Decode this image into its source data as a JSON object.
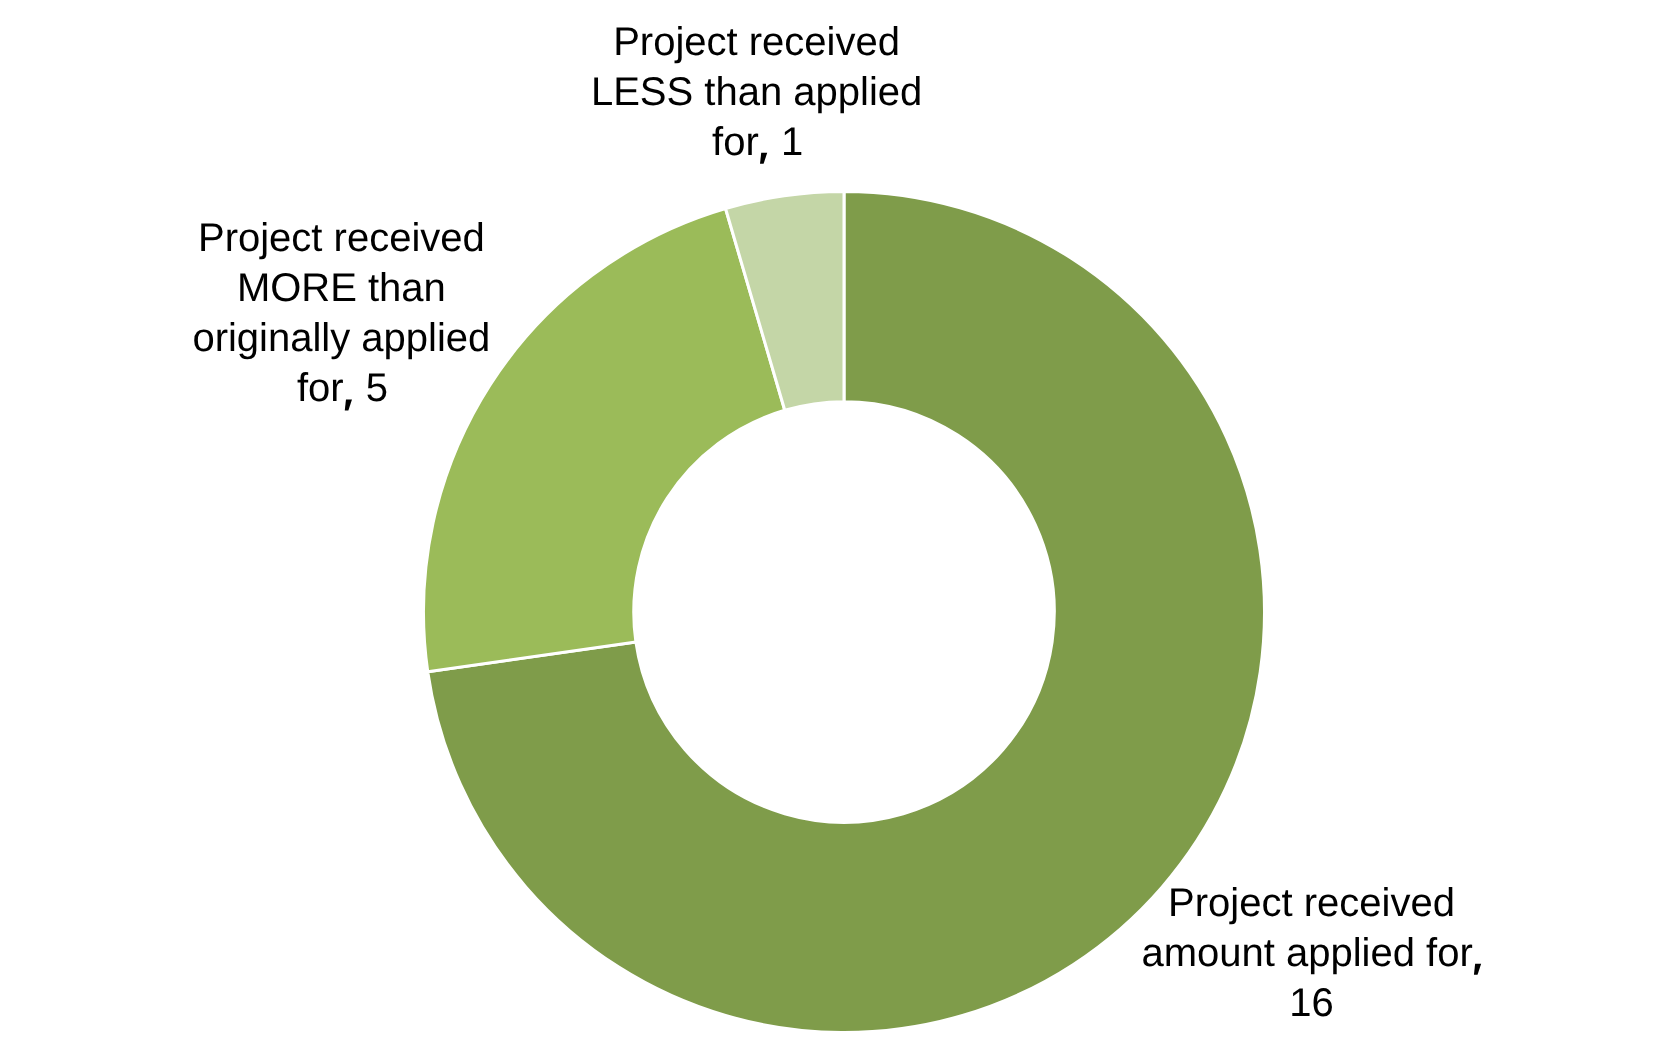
{
  "chart_data": {
    "type": "donut",
    "categories": [
      "Project received amount applied for",
      "Project received MORE than originally applied for",
      "Project received LESS than applied for"
    ],
    "values": [
      16,
      5,
      1
    ],
    "colors": [
      "#7f9c4a",
      "#9bbb59",
      "#c4d6a7"
    ],
    "data_labels": true,
    "legend": false
  }
}
